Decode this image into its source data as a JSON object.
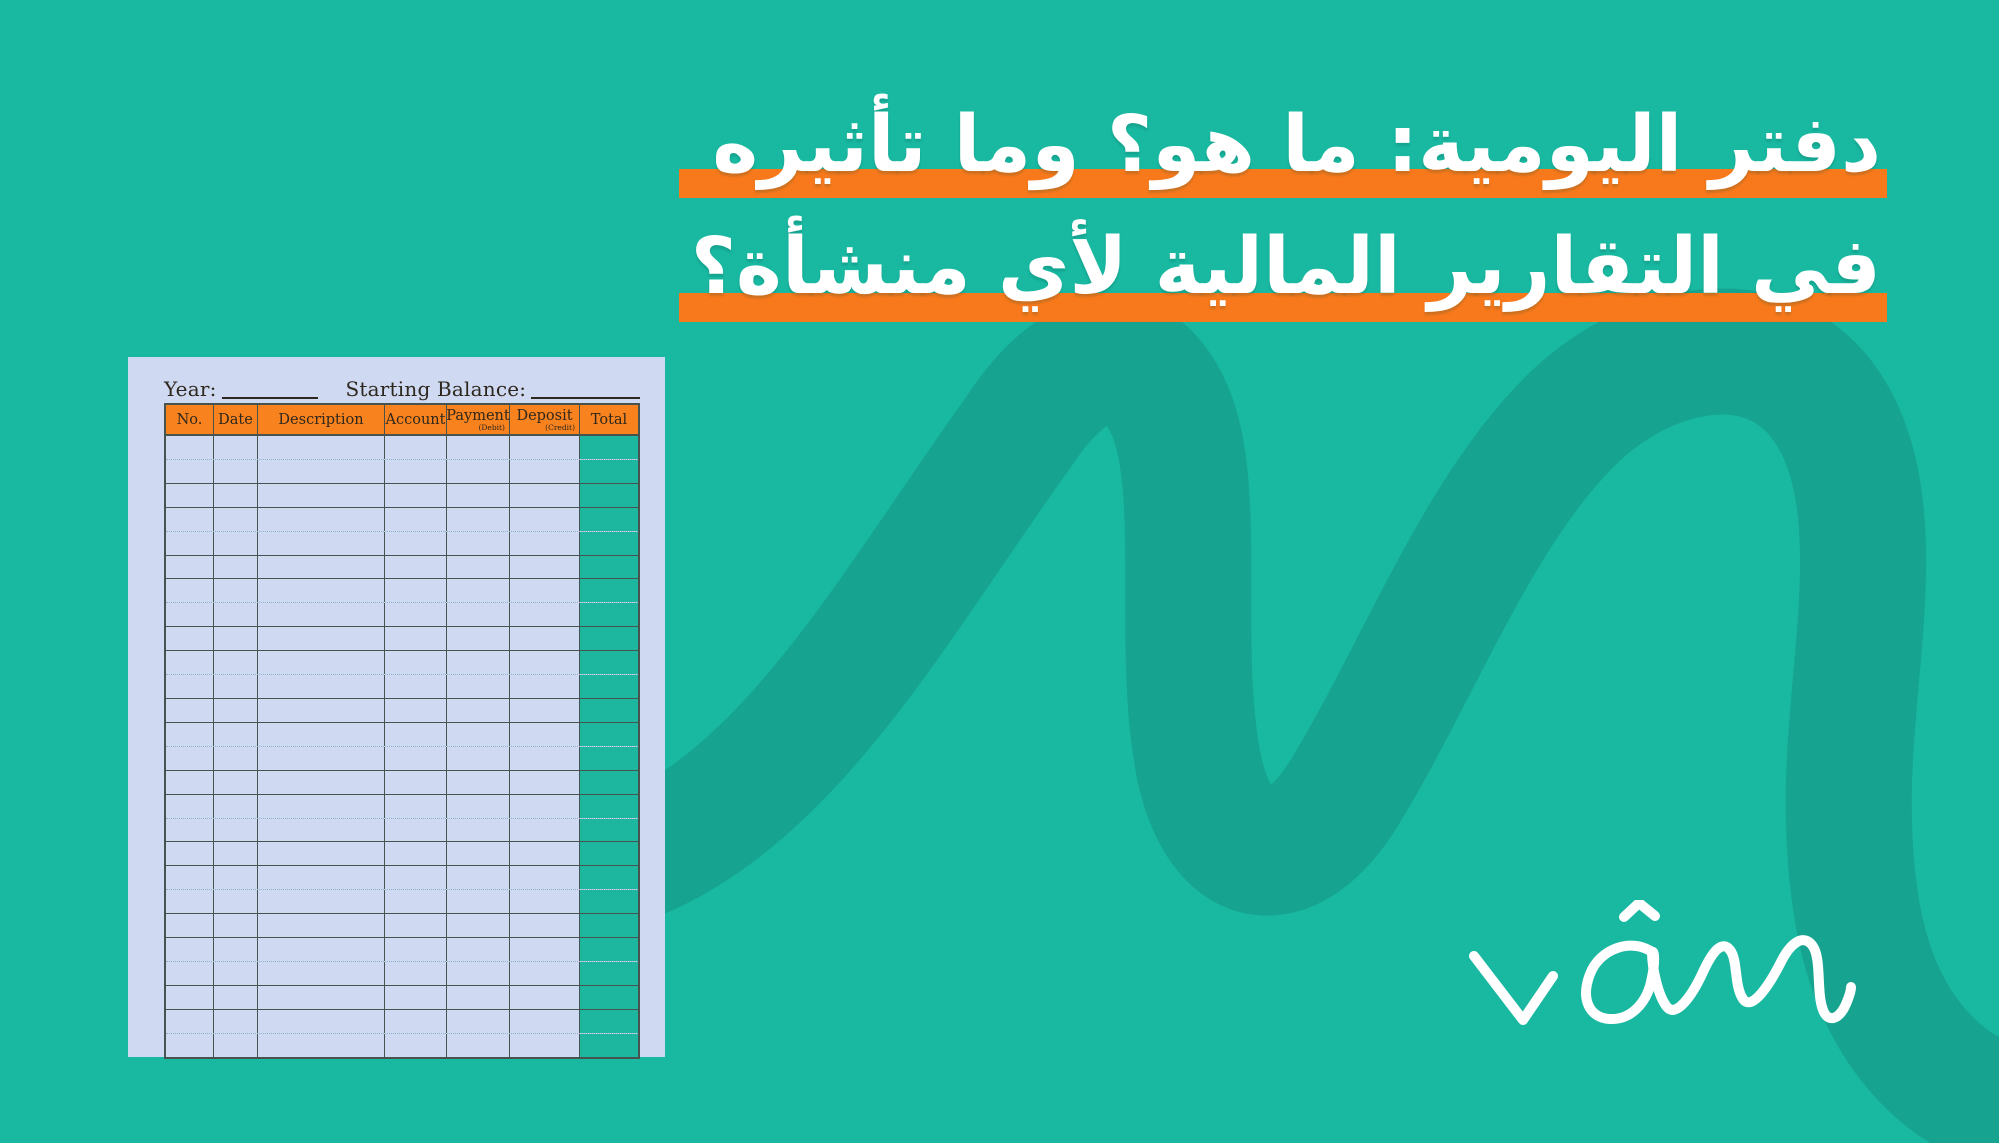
{
  "banner": {
    "title": {
      "line1": "دفتر اليومية: ما هو؟ وما تأثيره",
      "line2": "في التقارير المالية لأي منشأة؟",
      "direction": "rtl"
    },
    "colors": {
      "background": "#19b8a1",
      "swoosh": "#16a38f",
      "highlight": "#f8791b",
      "title_text": "#ffffff"
    }
  },
  "ledger_card": {
    "year_label": "Year:",
    "starting_balance_label": "Starting Balance:",
    "columns": [
      {
        "label": "No.",
        "sub": ""
      },
      {
        "label": "Date",
        "sub": ""
      },
      {
        "label": "Description",
        "sub": ""
      },
      {
        "label": "Account",
        "sub": ""
      },
      {
        "label": "Payment",
        "sub": "(Debit)"
      },
      {
        "label": "Deposit",
        "sub": "(Credit)"
      },
      {
        "label": "Total",
        "sub": ""
      }
    ],
    "row_count": 26,
    "cells_blank": true,
    "colors": {
      "paper": "#cfd9f1",
      "header_bg": "#f8821e",
      "total_column_bg": "#1db7a0",
      "grid_line": "#47534e",
      "text": "#2e271d"
    }
  },
  "logo": {
    "name": "vom-signature"
  }
}
